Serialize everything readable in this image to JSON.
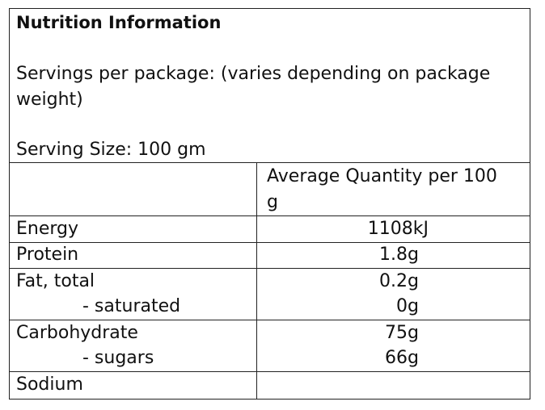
{
  "header": {
    "title": "Nutrition Information",
    "servings": "Servings per package: (varies depending on package weight)",
    "serving_size": "Serving Size: 100 gm"
  },
  "table": {
    "column_header": "Average Quantity per 100 g",
    "rows": [
      [
        "Energy",
        "1108kJ"
      ],
      [
        "Protein",
        "1.8g"
      ],
      [
        "Fat, total",
        "0.2g"
      ],
      [
        "- saturated",
        "0g"
      ],
      [
        "Carbohydrate",
        "75g"
      ],
      [
        "- sugars",
        "66g"
      ],
      [
        "Sodium"
      ]
    ]
  }
}
